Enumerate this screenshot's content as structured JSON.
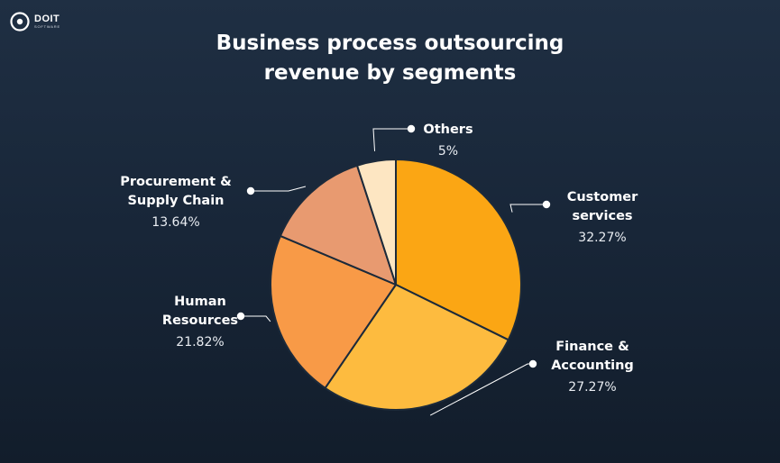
{
  "brand": {
    "name": "DOIT",
    "sub": "SOFTWARE"
  },
  "title_lines": [
    "Business process outsourcing",
    "revenue by segments"
  ],
  "chart_data": {
    "type": "pie",
    "title": "Business process outsourcing revenue by segments",
    "start_angle_deg": 0,
    "direction": "clockwise",
    "slices": [
      {
        "label_lines": [
          "Customer",
          "services"
        ],
        "value_text": "32.27%",
        "value": 32.27,
        "color": "#fba614"
      },
      {
        "label_lines": [
          "Finance &",
          "Accounting"
        ],
        "value_text": "27.27%",
        "value": 27.27,
        "color": "#fdbb3f"
      },
      {
        "label_lines": [
          "Human",
          "Resources"
        ],
        "value_text": "21.82%",
        "value": 21.82,
        "color": "#f89a47"
      },
      {
        "label_lines": [
          "Procurement &",
          "Supply Chain"
        ],
        "value_text": "13.64%",
        "value": 13.64,
        "color": "#e89a70"
      },
      {
        "label_lines": [
          "Others"
        ],
        "value_text": "5%",
        "value": 5,
        "color": "#fde6c2"
      }
    ]
  }
}
